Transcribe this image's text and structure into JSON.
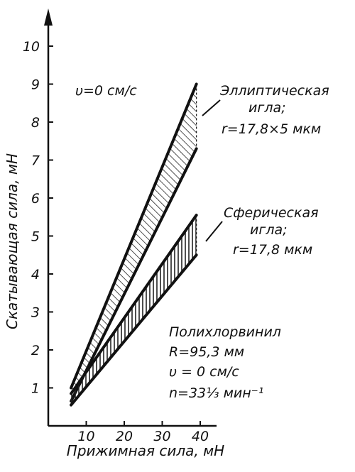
{
  "chart_data": {
    "type": "area",
    "title": "",
    "xlabel": "Прижимная сила, мН",
    "ylabel": "Скатывающая сила, мН",
    "xlim": [
      0,
      45
    ],
    "ylim": [
      0,
      10.8
    ],
    "x_ticks": [
      "10",
      "20",
      "30",
      "40"
    ],
    "y_ticks": [
      "1",
      "2",
      "3",
      "4",
      "5",
      "6",
      "7",
      "8",
      "9",
      "10"
    ],
    "grid": false,
    "series": [
      {
        "name": "Эллиптическая игла; r=17,8×5 мкм",
        "upper": [
          [
            6,
            1.0
          ],
          [
            39,
            9.0
          ]
        ],
        "lower": [
          [
            6,
            0.65
          ],
          [
            39,
            7.3
          ]
        ]
      },
      {
        "name": "Сферическая игла; r=17,8 мкм",
        "upper": [
          [
            6,
            0.85
          ],
          [
            39,
            5.55
          ]
        ],
        "lower": [
          [
            6,
            0.55
          ],
          [
            39,
            4.5
          ]
        ]
      }
    ],
    "annotations": {
      "velocity_top": "υ=0 см/с",
      "ellip_line1": "Эллиптическая",
      "ellip_line2": "игла;",
      "ellip_line3": "r=17,8×5 мкм",
      "spher_line1": "Сферическая",
      "spher_line2": "игла;",
      "spher_line3": "r=17,8 мкм",
      "material": "Полихлорвинил",
      "radius": "R=95,3 мм",
      "velocity": "υ = 0 см/с",
      "rpm": "n=33¹⁄₃ мин⁻¹"
    }
  }
}
